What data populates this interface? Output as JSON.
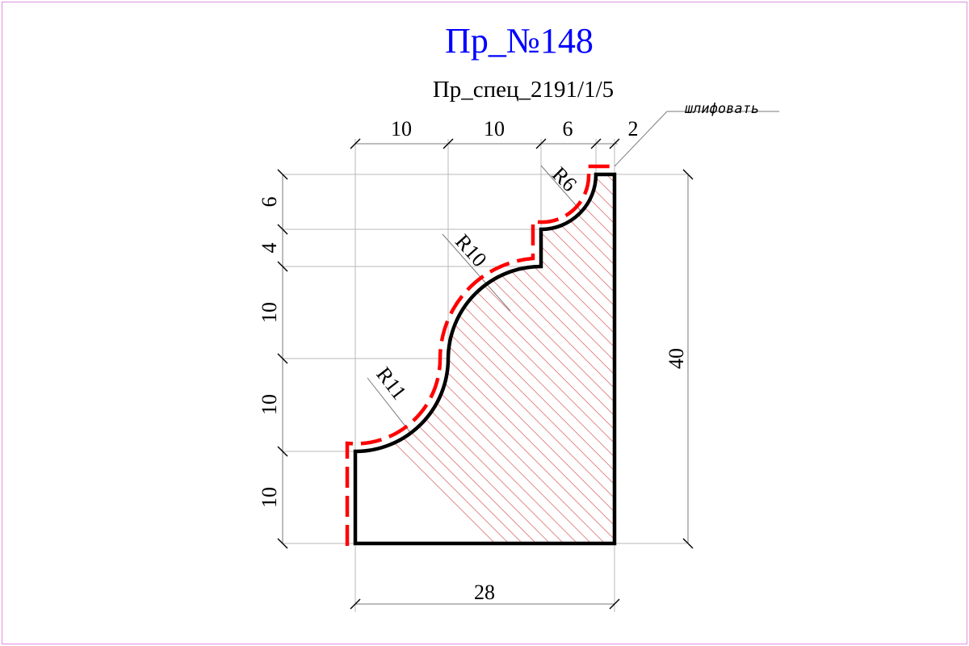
{
  "title": "Пр_№148",
  "subtitle": "Пр_спец_2191/1/5",
  "note": "шлифовать",
  "colors": {
    "title": "#0000ff",
    "sanding_line": "#ff0000",
    "hatch": "#e07b7b",
    "frame": "#e08ee0"
  },
  "dimensions": {
    "top": [
      "10",
      "10",
      "6",
      "2"
    ],
    "left": [
      "6",
      "4",
      "10",
      "10",
      "10"
    ],
    "overall_height": "40",
    "overall_width": "28"
  },
  "radii": [
    "R6",
    "R10",
    "R11"
  ]
}
